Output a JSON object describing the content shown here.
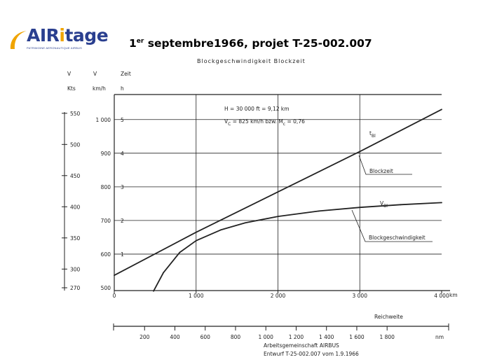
{
  "header": {
    "logo_text": "AIRitage",
    "logo_tagline": "PATRIMOINE AERONAUTIQUE AIRBUS",
    "title_day": "1",
    "title_sup": "er",
    "title_rest": " septembre1966, projet T-25-002.007"
  },
  "chart_data": {
    "type": "line",
    "title": "Blockgeschwindigkeit   Blockzeit",
    "xlabel": "Reichweite",
    "x_unit": "km",
    "xlim": [
      0,
      4000
    ],
    "x_ticks": [
      0,
      1000,
      2000,
      3000,
      4000
    ],
    "x_tick_labels": [
      "0",
      "1 000",
      "2 000",
      "3 000",
      "4 000"
    ],
    "y_speed_kmh_lim": [
      500,
      1050
    ],
    "y_speed_kmh_ticks": [
      500,
      600,
      700,
      800,
      900,
      1000
    ],
    "y_speed_kmh_tick_labels": [
      "500",
      "600",
      "700",
      "800",
      "900",
      "1 000"
    ],
    "y_speed_kts_ticks": [
      270,
      300,
      350,
      400,
      450,
      500,
      550
    ],
    "y_speed_kts_tick_labels": [
      "270",
      "300",
      "350",
      "400",
      "450",
      "500",
      "550"
    ],
    "y_time_ticks": [
      1,
      2,
      3,
      4,
      5
    ],
    "y_time_tick_labels": [
      "1",
      "2",
      "3",
      "4",
      "5"
    ],
    "axis_headers": {
      "kts_unit": "V",
      "kts_label": "Kts",
      "kmh_unit": "V",
      "kmh_label": "km/h",
      "time_unit": "Zeit",
      "time_label": "h"
    },
    "conditions": [
      "H   =  30 000 ft = 9,12 km",
      "V",
      "C",
      " = 825 km/h bzw.  M",
      "c",
      " = 0,76"
    ],
    "series": [
      {
        "name": "Blockzeit",
        "symbol": "t",
        "symbol_sub": "Bl",
        "axis": "time_h",
        "x": [
          0,
          1000,
          2000,
          3000,
          4000
        ],
        "values": [
          0.37,
          1.65,
          2.85,
          4.05,
          5.3
        ]
      },
      {
        "name": "Blockgeschwindigkeit",
        "symbol": "V",
        "symbol_sub": "Bl",
        "axis": "speed_kmh",
        "x": [
          480,
          600,
          800,
          1000,
          1300,
          1600,
          2000,
          2500,
          3000,
          3500,
          4000
        ],
        "values": [
          490,
          545,
          605,
          640,
          672,
          693,
          712,
          728,
          739,
          747,
          753
        ]
      }
    ],
    "bottom_axis": {
      "unit": "nm",
      "ticks": [
        200,
        400,
        600,
        800,
        1000,
        1200,
        1400,
        1600,
        1800
      ],
      "tick_labels": [
        "200",
        "400",
        "600",
        "800",
        "1 000",
        "1 200",
        "1 400",
        "1 600",
        "1 800"
      ]
    },
    "source": [
      "Arbeitsgemeinschaft  AIRBUS",
      "Entwurf  T-25-002.007  vom  1.9.1966"
    ],
    "grid": true
  },
  "colors": {
    "logo_blue": "#2a3f8f",
    "logo_orange": "#f0a400",
    "ink": "#222222"
  }
}
